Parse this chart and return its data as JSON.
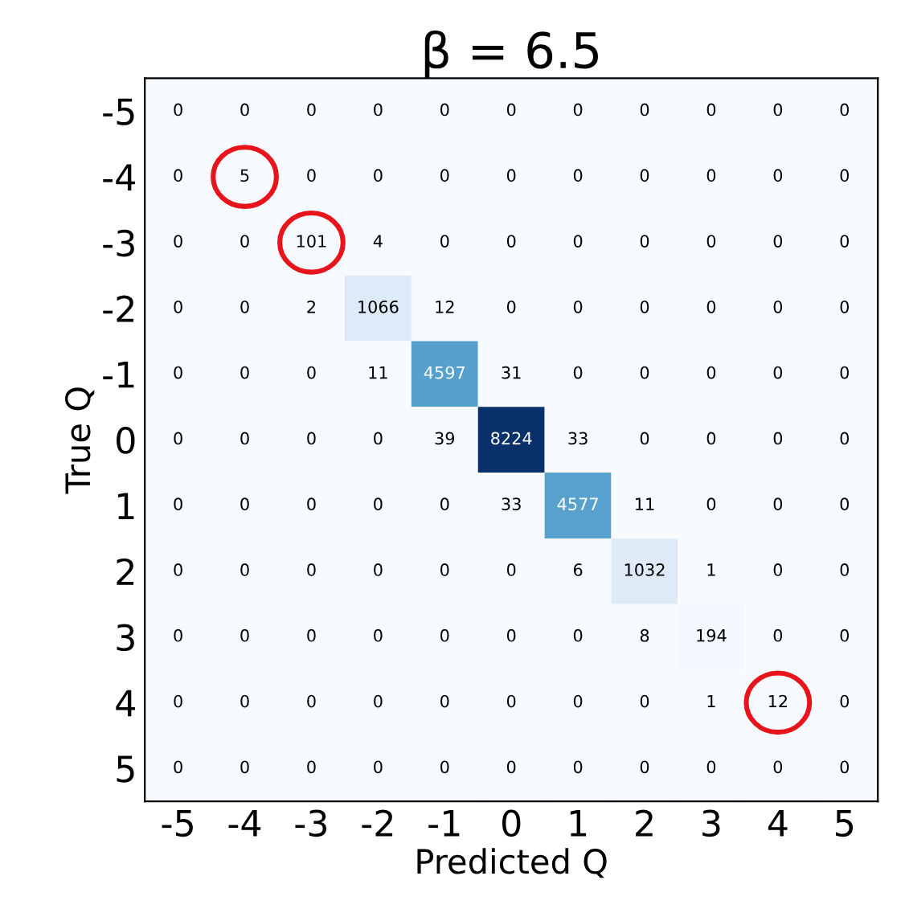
{
  "chart_data": {
    "type": "heatmap",
    "title": "β = 6.5",
    "xlabel": "Predicted Q",
    "ylabel": "True Q",
    "categories": [
      "-5",
      "-4",
      "-3",
      "-2",
      "-1",
      "0",
      "1",
      "2",
      "3",
      "4",
      "5"
    ],
    "y_categories": [
      "-5",
      "-4",
      "-3",
      "-2",
      "-1",
      "0",
      "1",
      "2",
      "3",
      "4",
      "5"
    ],
    "cells": [
      [
        0,
        0,
        0,
        0,
        0,
        0,
        0,
        0,
        0,
        0,
        0
      ],
      [
        0,
        5,
        0,
        0,
        0,
        0,
        0,
        0,
        0,
        0,
        0
      ],
      [
        0,
        0,
        101,
        4,
        0,
        0,
        0,
        0,
        0,
        0,
        0
      ],
      [
        0,
        0,
        2,
        1066,
        12,
        0,
        0,
        0,
        0,
        0,
        0
      ],
      [
        0,
        0,
        0,
        11,
        4597,
        31,
        0,
        0,
        0,
        0,
        0
      ],
      [
        0,
        0,
        0,
        0,
        39,
        8224,
        33,
        0,
        0,
        0,
        0
      ],
      [
        0,
        0,
        0,
        0,
        0,
        33,
        4577,
        11,
        0,
        0,
        0
      ],
      [
        0,
        0,
        0,
        0,
        0,
        0,
        6,
        1032,
        1,
        0,
        0
      ],
      [
        0,
        0,
        0,
        0,
        0,
        0,
        0,
        8,
        194,
        0,
        0
      ],
      [
        0,
        0,
        0,
        0,
        0,
        0,
        0,
        0,
        1,
        12,
        0
      ],
      [
        0,
        0,
        0,
        0,
        0,
        0,
        0,
        0,
        0,
        0,
        0
      ]
    ],
    "data_labels": true
  }
}
